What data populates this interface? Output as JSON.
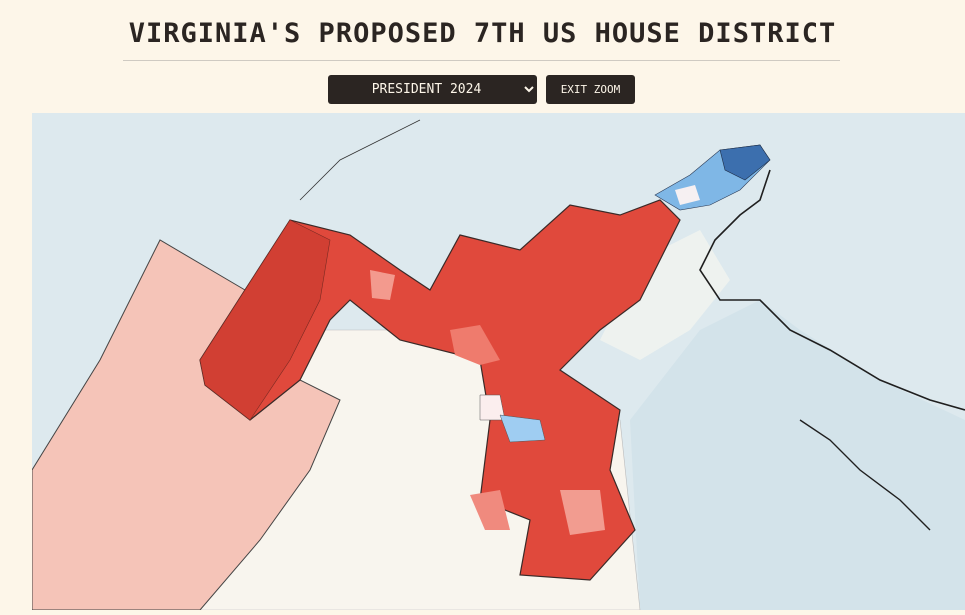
{
  "header": {
    "title": "VIRGINIA'S PROPOSED 7TH US HOUSE DISTRICT"
  },
  "controls": {
    "select": {
      "selected": "PRESIDENT 2024"
    },
    "button": "EXIT ZOOM"
  }
}
